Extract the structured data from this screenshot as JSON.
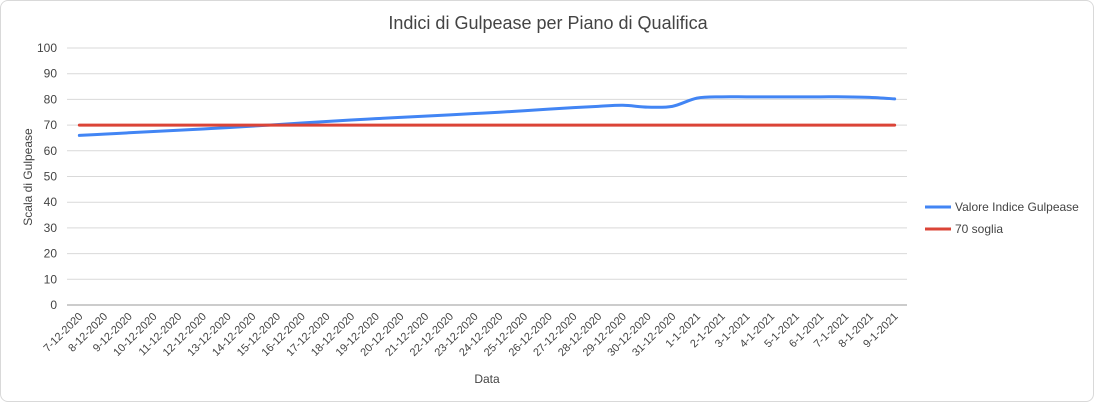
{
  "chart_data": {
    "type": "line",
    "title": "Indici di Gulpease per Piano di Qualifica",
    "xlabel": "Data",
    "ylabel": "Scala di Gulpease",
    "ylim": [
      0,
      100
    ],
    "yticks": [
      "0",
      "10",
      "20",
      "30",
      "40",
      "50",
      "60",
      "70",
      "80",
      "90",
      "100"
    ],
    "grid": true,
    "legend_position": "right",
    "categories": [
      "7-12-2020",
      "8-12-2020",
      "9-12-2020",
      "10-12-2020",
      "11-12-2020",
      "12-12-2020",
      "13-12-2020",
      "14-12-2020",
      "15-12-2020",
      "16-12-2020",
      "17-12-2020",
      "18-12-2020",
      "19-12-2020",
      "20-12-2020",
      "21-12-2020",
      "22-12-2020",
      "23-12-2020",
      "24-12-2020",
      "25-12-2020",
      "26-12-2020",
      "27-12-2020",
      "28-12-2020",
      "29-12-2020",
      "30-12-2020",
      "31-12-2020",
      "1-1-2021",
      "2-1-2021",
      "3-1-2021",
      "4-1-2021",
      "5-1-2021",
      "6-1-2021",
      "7-1-2021",
      "8-1-2021",
      "9-1-2021"
    ],
    "series": [
      {
        "name": "Valore Indice Gulpease",
        "color": "#4285f4",
        "values": [
          66,
          66.5,
          67,
          67.5,
          68,
          68.5,
          69,
          69.6,
          70.2,
          70.8,
          71.4,
          72,
          72.5,
          73,
          73.5,
          74,
          74.5,
          75,
          75.6,
          76.2,
          76.8,
          77.3,
          77.7,
          77,
          77.3,
          80.5,
          81,
          81,
          81,
          81,
          81,
          81,
          80.8,
          80.2
        ]
      },
      {
        "name": "70 soglia",
        "color": "#db4437",
        "values": [
          70,
          70,
          70,
          70,
          70,
          70,
          70,
          70,
          70,
          70,
          70,
          70,
          70,
          70,
          70,
          70,
          70,
          70,
          70,
          70,
          70,
          70,
          70,
          70,
          70,
          70,
          70,
          70,
          70,
          70,
          70,
          70,
          70,
          70
        ]
      }
    ]
  }
}
